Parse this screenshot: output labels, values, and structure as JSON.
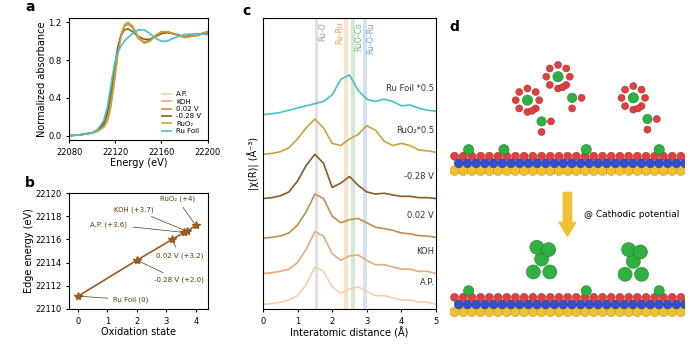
{
  "chart_data": [
    {
      "type": "line",
      "title": "a",
      "x_label": "Energy (eV)",
      "y_label": "Normalized absorbance",
      "x": [
        22080,
        22090,
        22100,
        22105,
        22110,
        22113,
        22116,
        22119,
        22122,
        22125,
        22128,
        22131,
        22135,
        22140,
        22145,
        22150,
        22155,
        22160,
        22165,
        22170,
        22180,
        22190,
        22200
      ],
      "xlim": [
        22080,
        22200
      ],
      "xticks": [
        22080,
        22120,
        22160,
        22200
      ],
      "ylim": [
        -0.05,
        1.25
      ],
      "yticks": [
        0.0,
        0.4,
        0.8,
        1.2
      ],
      "legend": "lower right",
      "series": [
        {
          "name": "A.P.",
          "color": "#f5cfa8",
          "values": [
            0.0,
            0.01,
            0.03,
            0.05,
            0.1,
            0.17,
            0.33,
            0.58,
            0.88,
            1.07,
            1.18,
            1.2,
            1.15,
            1.03,
            0.98,
            1.01,
            1.07,
            1.1,
            1.1,
            1.08,
            1.04,
            1.06,
            1.1
          ]
        },
        {
          "name": "KOH",
          "color": "#e9a97a",
          "values": [
            0.0,
            0.01,
            0.03,
            0.05,
            0.1,
            0.16,
            0.32,
            0.57,
            0.87,
            1.06,
            1.17,
            1.19,
            1.15,
            1.03,
            0.98,
            1.0,
            1.06,
            1.1,
            1.1,
            1.08,
            1.04,
            1.06,
            1.1
          ]
        },
        {
          "name": "0.02 V",
          "color": "#c98b4a",
          "values": [
            0.0,
            0.01,
            0.03,
            0.06,
            0.11,
            0.19,
            0.36,
            0.62,
            0.9,
            1.07,
            1.16,
            1.18,
            1.14,
            1.03,
            0.99,
            1.01,
            1.06,
            1.09,
            1.1,
            1.08,
            1.04,
            1.06,
            1.1
          ]
        },
        {
          "name": "-0.28 V",
          "color": "#8b5a20",
          "values": [
            0.0,
            0.01,
            0.03,
            0.06,
            0.13,
            0.24,
            0.45,
            0.7,
            0.93,
            1.06,
            1.12,
            1.13,
            1.1,
            1.05,
            1.02,
            1.02,
            1.05,
            1.08,
            1.09,
            1.08,
            1.05,
            1.06,
            1.09
          ]
        },
        {
          "name": "RuO₂",
          "color": "#c9a33a",
          "values": [
            0.0,
            0.01,
            0.03,
            0.05,
            0.09,
            0.15,
            0.3,
            0.55,
            0.85,
            1.05,
            1.17,
            1.2,
            1.16,
            1.04,
            0.98,
            1.0,
            1.06,
            1.1,
            1.1,
            1.08,
            1.04,
            1.06,
            1.1
          ]
        },
        {
          "name": "Ru Foil",
          "color": "#45c2c8",
          "values": [
            0.0,
            0.01,
            0.03,
            0.07,
            0.16,
            0.3,
            0.52,
            0.74,
            0.88,
            0.95,
            1.0,
            1.04,
            1.08,
            1.12,
            1.12,
            1.08,
            1.03,
            1.0,
            1.0,
            1.03,
            1.07,
            1.08,
            1.07
          ]
        }
      ]
    },
    {
      "type": "scatter",
      "title": "b",
      "x_label": "Oxidation state",
      "y_label": "Edge energy (eV)",
      "x": [
        0,
        2.0,
        3.2,
        3.6,
        3.7,
        4
      ],
      "values": [
        22111.1,
        22114.2,
        22116.0,
        22116.6,
        22116.7,
        22117.2
      ],
      "point_labels": [
        "Ru Foil (0)",
        "-0.28 V (+2.0)",
        "0.02 V (+3.2)",
        "A.P. (+3.6)",
        "KOH (+3.7)",
        "RuO₂ (+4)"
      ],
      "color": "#9a5b1e",
      "marker": "star",
      "line_style": "solid",
      "xlim": [
        -0.3,
        4.4
      ],
      "xticks": [
        0,
        1,
        2,
        3,
        4
      ],
      "ylim": [
        22110,
        22120
      ],
      "yticks": [
        22110,
        22112,
        22114,
        22116,
        22118,
        22120
      ]
    },
    {
      "type": "line",
      "title": "c",
      "x_label": "Interatomic distance (Å)",
      "y_label": "|χ(R)| (Å⁻³)",
      "x": [
        0,
        0.25,
        0.5,
        0.75,
        1.0,
        1.25,
        1.5,
        1.75,
        2.0,
        2.25,
        2.5,
        2.75,
        3.0,
        3.25,
        3.5,
        3.75,
        4.0,
        4.25,
        4.5,
        4.75,
        5.0
      ],
      "xlim": [
        0,
        5
      ],
      "xticks": [
        0,
        1,
        2,
        3,
        4,
        5
      ],
      "ylim": [
        0,
        6.6
      ],
      "tick_labels": "x",
      "bands": [
        {
          "name": "Ru-O",
          "value": 1.55,
          "color": "#9e9e9e"
        },
        {
          "name": "Ru-Ru",
          "value": 2.4,
          "color": "#e8a050"
        },
        {
          "name": "RuO-Co",
          "value": 2.6,
          "color": "#6fb86f"
        },
        {
          "name": "Ru-O-Ru",
          "value": 2.95,
          "color": "#6f9fd8"
        }
      ],
      "series": [
        {
          "name": "Ru Foil *0.5",
          "color": "#45c2c8",
          "values": [
            4.4,
            4.42,
            4.45,
            4.5,
            4.55,
            4.6,
            4.65,
            4.7,
            4.85,
            5.2,
            5.3,
            4.95,
            4.75,
            4.7,
            4.75,
            4.7,
            4.6,
            4.62,
            4.55,
            4.5,
            4.48
          ]
        },
        {
          "name": "RuO₂*0.5",
          "color": "#c9a33a",
          "values": [
            3.5,
            3.52,
            3.56,
            3.65,
            3.85,
            4.1,
            4.3,
            4.1,
            3.75,
            3.7,
            3.85,
            3.95,
            4.15,
            4.05,
            3.8,
            3.7,
            3.75,
            3.7,
            3.6,
            3.58,
            3.55
          ]
        },
        {
          "name": "-0.28 V",
          "color": "#8b5a20",
          "values": [
            2.5,
            2.52,
            2.56,
            2.65,
            2.9,
            3.25,
            3.5,
            3.3,
            2.75,
            2.85,
            3.0,
            2.8,
            2.65,
            2.6,
            2.62,
            2.58,
            2.55,
            2.55,
            2.52,
            2.52,
            2.5
          ]
        },
        {
          "name": "0.02 V",
          "color": "#c98b4a",
          "values": [
            1.6,
            1.62,
            1.65,
            1.72,
            1.9,
            2.2,
            2.6,
            2.5,
            2.1,
            1.95,
            2.02,
            2.05,
            1.95,
            1.85,
            1.82,
            1.78,
            1.72,
            1.7,
            1.66,
            1.65,
            1.62
          ]
        },
        {
          "name": "KOH",
          "color": "#e9a97a",
          "values": [
            0.8,
            0.82,
            0.85,
            0.9,
            1.05,
            1.35,
            1.75,
            1.65,
            1.25,
            1.1,
            1.2,
            1.22,
            1.1,
            1.0,
            1.0,
            0.95,
            0.9,
            0.9,
            0.85,
            0.85,
            0.8
          ]
        },
        {
          "name": "A.P.",
          "color": "#f5cfa8",
          "values": [
            0.1,
            0.12,
            0.15,
            0.2,
            0.3,
            0.55,
            0.95,
            0.85,
            0.5,
            0.35,
            0.45,
            0.5,
            0.4,
            0.3,
            0.3,
            0.25,
            0.2,
            0.2,
            0.15,
            0.15,
            0.1
          ]
        }
      ]
    },
    {
      "type": "diagram",
      "title": "d",
      "annotations": [
        "@ Cathodic potential"
      ]
    }
  ]
}
